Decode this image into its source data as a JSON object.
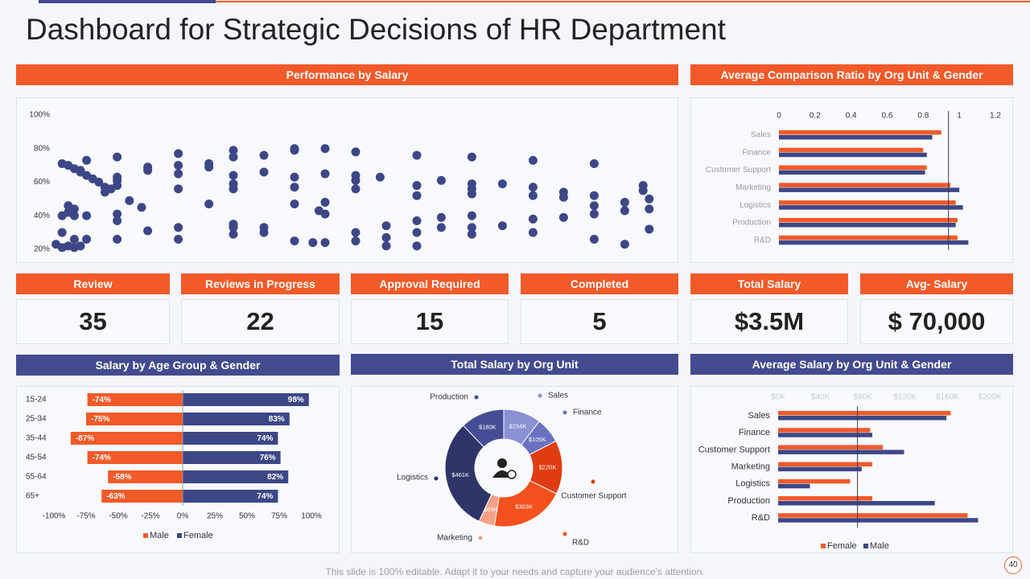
{
  "title": "Dashboard for Strategic Decisions of HR Department",
  "kpis": [
    {
      "label": "Review",
      "value": "35"
    },
    {
      "label": "Reviews in Progress",
      "value": "22"
    },
    {
      "label": "Approval Required",
      "value": "15"
    },
    {
      "label": "Completed",
      "value": "5"
    },
    {
      "label": "Total Salary",
      "value": "$3.5M"
    },
    {
      "label": "Avg- Salary",
      "value": "$ 70,000"
    }
  ],
  "footer": "This slide is 100% editable. Adapt it to your needs and capture your audience's attention.",
  "page_number": "40",
  "chart_data": [
    {
      "type": "scatter",
      "title": "Performance by Salary",
      "color": "#3d4787",
      "xlim": [
        0,
        100
      ],
      "ylim": [
        20,
        100
      ],
      "yticks": [
        {
          "value": 20,
          "label": "20%"
        },
        {
          "value": 40,
          "label": "40%"
        },
        {
          "value": 60,
          "label": "60%"
        },
        {
          "value": 80,
          "label": "80%"
        },
        {
          "value": 100,
          "label": "100%"
        }
      ],
      "x": [
        1,
        2,
        2,
        2,
        3,
        4,
        5,
        5,
        6,
        7,
        8,
        9,
        9,
        10,
        11,
        2,
        3,
        4,
        5,
        6,
        4,
        3,
        4,
        3,
        4,
        6,
        6,
        11,
        11,
        11,
        11,
        11,
        11,
        13,
        15,
        16,
        16,
        16,
        21,
        21,
        21,
        21,
        21,
        21,
        26,
        26,
        26,
        30,
        30,
        30,
        30,
        30,
        30,
        30,
        30,
        35,
        35,
        35,
        35,
        40,
        40,
        40,
        40,
        40,
        40,
        43,
        45,
        45,
        45,
        44,
        45,
        45,
        50,
        50,
        50,
        50,
        50,
        50,
        54,
        55,
        55,
        55,
        60,
        60,
        60,
        60,
        60,
        60,
        64,
        64,
        64,
        69,
        69,
        69,
        69,
        69,
        69,
        69,
        74,
        74,
        79,
        79,
        79,
        79,
        79,
        84,
        84,
        84,
        89,
        89,
        89,
        89,
        89,
        94,
        94,
        94,
        97,
        97,
        98,
        98,
        98
      ],
      "values": [
        23,
        30,
        40,
        71,
        70,
        68,
        67,
        66,
        64,
        62,
        60,
        57,
        54,
        56,
        58,
        21,
        22,
        21,
        22,
        26,
        26,
        42,
        44,
        46,
        40,
        40,
        73,
        75,
        63,
        61,
        41,
        37,
        26,
        49,
        45,
        31,
        69,
        67,
        77,
        70,
        65,
        56,
        33,
        26,
        71,
        69,
        47,
        79,
        75,
        64,
        59,
        56,
        35,
        33,
        29,
        76,
        66,
        33,
        30,
        80,
        79,
        63,
        57,
        47,
        25,
        24,
        80,
        65,
        48,
        43,
        41,
        24,
        78,
        64,
        61,
        56,
        30,
        25,
        63,
        34,
        27,
        22,
        76,
        58,
        52,
        37,
        30,
        22,
        61,
        39,
        33,
        75,
        59,
        56,
        53,
        40,
        33,
        29,
        59,
        34,
        73,
        57,
        52,
        38,
        30,
        54,
        51,
        39,
        71,
        52,
        46,
        41,
        26,
        48,
        43,
        23,
        58,
        55,
        50,
        44,
        32
      ]
    },
    {
      "type": "bar",
      "orientation": "horizontal",
      "title": "Average Comparison Ratio by Org Unit & Gender",
      "categories": [
        "Sales",
        "Finance",
        "Customer Support",
        "Marketing",
        "Logistics",
        "Production",
        "R&D"
      ],
      "series": [
        {
          "color": "#f25a29",
          "values": [
            0.9,
            0.8,
            0.82,
            0.95,
            0.98,
            0.99,
            0.99
          ]
        },
        {
          "color": "#3d4787",
          "values": [
            0.85,
            0.82,
            0.81,
            1.0,
            1.02,
            0.98,
            1.05
          ]
        }
      ],
      "xlim": [
        0,
        1.2
      ],
      "xticks": [
        0,
        0.2,
        0.4,
        0.6,
        0.8,
        1,
        1.2
      ],
      "reference": 0.94
    },
    {
      "type": "bar",
      "orientation": "horizontal",
      "stacked": true,
      "title": "Salary by Age Group & Gender",
      "categories": [
        "15-24",
        "25-34",
        "35-44",
        "45-54",
        "55-64",
        "65+"
      ],
      "series": [
        {
          "name": "Male",
          "color": "#f25a29",
          "values": [
            -74,
            -75,
            -87,
            -74,
            -58,
            -63
          ],
          "value_labels": [
            "-74%",
            "-75%",
            "-87%",
            "-74%",
            "-58%",
            "-63%"
          ]
        },
        {
          "name": "Female",
          "color": "#3d4787",
          "values": [
            98,
            83,
            74,
            76,
            82,
            74
          ],
          "value_labels": [
            "98%",
            "83%",
            "74%",
            "76%",
            "82%",
            "74%"
          ]
        }
      ],
      "xlim": [
        -100,
        100
      ],
      "xticks": [
        {
          "value": -100,
          "label": "-100%"
        },
        {
          "value": -75,
          "label": "-75%"
        },
        {
          "value": -50,
          "label": "-50%"
        },
        {
          "value": -25,
          "label": "-25%"
        },
        {
          "value": 0,
          "label": "0%"
        },
        {
          "value": 25,
          "label": "25%"
        },
        {
          "value": 50,
          "label": "50%"
        },
        {
          "value": 75,
          "label": "75%"
        },
        {
          "value": 100,
          "label": "100%"
        }
      ]
    },
    {
      "type": "pie",
      "donut": true,
      "title": "Total Salary by Org Unit",
      "categories": [
        "Sales",
        "Finance",
        "Customer Support",
        "R&D",
        "Marketing",
        "Logistics",
        "Production"
      ],
      "values": [
        154,
        105,
        220,
        303,
        65,
        461,
        180
      ],
      "value_labels": [
        "$154K",
        "$105K",
        "$220K",
        "$303K",
        "$65K",
        "$461K",
        "$180K"
      ],
      "colors": [
        "#8b92d4",
        "#6a72c0",
        "#e03c12",
        "#f4511e",
        "#f7a088",
        "#2e3568",
        "#454e94"
      ]
    },
    {
      "type": "bar",
      "orientation": "horizontal",
      "title": "Average Salary by Org Unit & Gender",
      "categories": [
        "Sales",
        "Finance",
        "Customer Support",
        "Marketing",
        "Logistics",
        "Production",
        "R&D"
      ],
      "series": [
        {
          "name": "Female",
          "color": "#f25a29",
          "values": [
            163000,
            87000,
            99000,
            89000,
            68000,
            89000,
            179000
          ]
        },
        {
          "name": "Male",
          "color": "#3d4787",
          "values": [
            159000,
            89000,
            119000,
            79000,
            30000,
            148000,
            189000
          ]
        }
      ],
      "xlim": [
        0,
        200000
      ],
      "xticks": [
        {
          "value": 0,
          "label": "$0K"
        },
        {
          "value": 40000,
          "label": "$40K"
        },
        {
          "value": 80000,
          "label": "$80K"
        },
        {
          "value": 120000,
          "label": "$120K"
        },
        {
          "value": 160000,
          "label": "$160K"
        },
        {
          "value": 200000,
          "label": "$200K"
        }
      ],
      "reference": 75000
    }
  ]
}
